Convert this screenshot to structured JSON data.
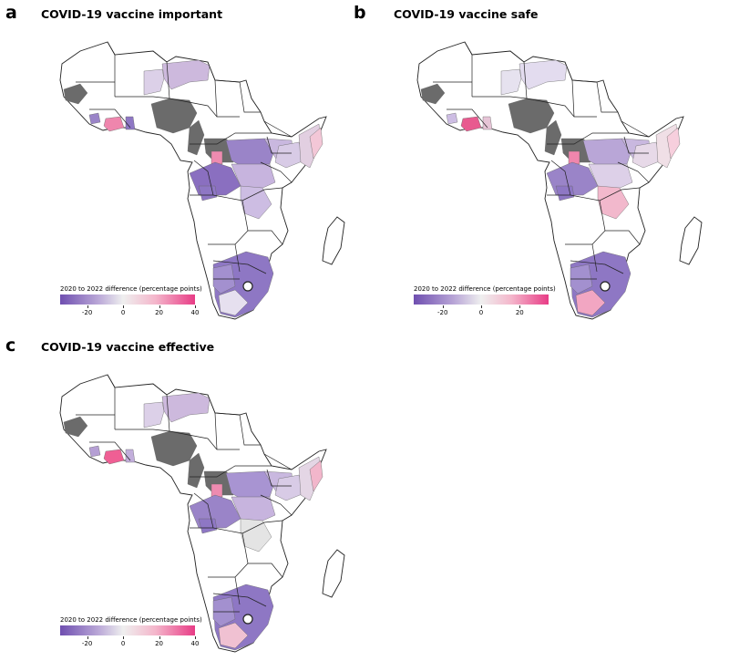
{
  "panels": [
    {
      "letter": "a",
      "title": "COVID-19 vaccine important",
      "legend": {
        "title": "2020 to 2022 difference (percentage points)",
        "min": -35,
        "max": 40,
        "ticks": [
          {
            "value": -20,
            "label": "-20"
          },
          {
            "value": 0,
            "label": "0"
          },
          {
            "value": 20,
            "label": "20"
          },
          {
            "value": 40,
            "label": "40"
          }
        ]
      },
      "fills": {
        "niger": "#cdb9dd",
        "mali_e": "#dcd0e8",
        "nigeria": "#6b6b6b",
        "senegal": "#6b6b6b",
        "cdi": "#ef86ad",
        "ghana": "#8e77c4",
        "sierra": "#9a84c8",
        "cameroon": "#6b6b6b",
        "car": "#6b6b6b",
        "car_w": "#ee8bb0",
        "drc_n": "#9a84c8",
        "drc_w": "#8a6fc0",
        "drc_c": "#c7b4de",
        "drc_s": "#cdbde3",
        "sudan_s": "#c9b8df",
        "uganda": "#d8cbe6",
        "kenya": "#e2cfe1",
        "kenya_e": "#f3c7d7",
        "sa_main": "#8e77c4",
        "sa_w": "#a390cf",
        "sa_cape": "#e6e0ef",
        "congo": "#8e77c4"
      }
    },
    {
      "letter": "b",
      "title": "COVID-19 vaccine safe",
      "legend": {
        "title": "2020 to 2022 difference (percentage points)",
        "min": -35,
        "max": 35,
        "ticks": [
          {
            "value": -20,
            "label": "-20"
          },
          {
            "value": 0,
            "label": "0"
          },
          {
            "value": 20,
            "label": "20"
          }
        ]
      },
      "fills": {
        "niger": "#e3dcef",
        "mali_e": "#e6e2ef",
        "nigeria": "#6b6b6b",
        "senegal": "#6b6b6b",
        "cdi": "#e85a8f",
        "ghana": "#e6c4d6",
        "sierra": "#cdbde3",
        "cameroon": "#6b6b6b",
        "car": "#6b6b6b",
        "car_w": "#ef86ad",
        "drc_n": "#b9a6d7",
        "drc_w": "#9a84c8",
        "drc_c": "#ddd0e8",
        "drc_s": "#f2b8cc",
        "sudan_s": "#c9b8df",
        "uganda": "#e7d9e8",
        "kenya": "#f0dfe6",
        "kenya_e": "#f7cfdd",
        "sa_main": "#8e77c4",
        "sa_w": "#a390cf",
        "sa_cape": "#f2a6c2",
        "congo": "#8e77c4"
      }
    },
    {
      "letter": "c",
      "title": "COVID-19 vaccine effective",
      "legend": {
        "title": "2020 to 2022 difference (percentage points)",
        "min": -35,
        "max": 40,
        "ticks": [
          {
            "value": -20,
            "label": "-20"
          },
          {
            "value": 0,
            "label": "0"
          },
          {
            "value": 20,
            "label": "20"
          },
          {
            "value": 40,
            "label": "40"
          }
        ]
      },
      "fills": {
        "niger": "#cdb9dd",
        "mali_e": "#dcd0e8",
        "nigeria": "#6b6b6b",
        "senegal": "#6b6b6b",
        "cdi": "#ef5f94",
        "ghana": "#c2aedb",
        "sierra": "#b59fd4",
        "cameroon": "#6b6b6b",
        "car": "#6b6b6b",
        "car_w": "#ee8bb0",
        "drc_n": "#a894d2",
        "drc_w": "#9a84c8",
        "drc_c": "#c7b4de",
        "drc_s": "#e4e4e4",
        "sudan_s": "#c9b8df",
        "uganda": "#d8cbe6",
        "kenya": "#e4d6e5",
        "kenya_e": "#f2b6cb",
        "sa_main": "#8e77c4",
        "sa_w": "#a390cf",
        "sa_cape": "#f0c1d2",
        "congo": "#8e77c4"
      }
    }
  ]
}
